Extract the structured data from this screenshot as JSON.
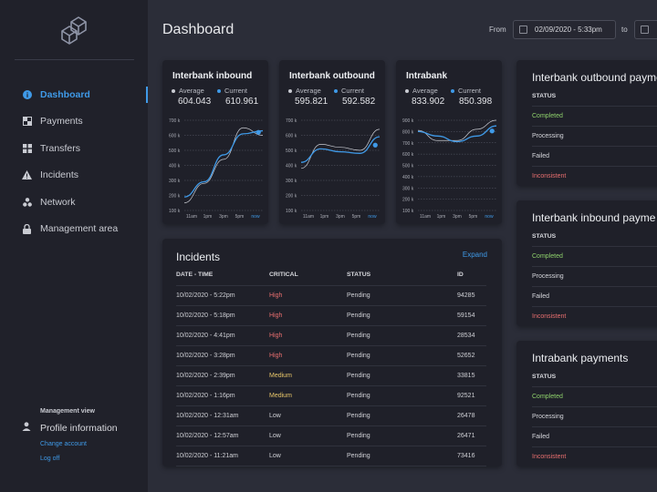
{
  "header": {
    "title": "Dashboard",
    "from_label": "From",
    "from_value": "02/09/2020 - 5:33pm",
    "to_label": "to"
  },
  "sidebar": {
    "items": [
      {
        "label": "Dashboard",
        "icon": "info-icon",
        "active": true
      },
      {
        "label": "Payments",
        "icon": "payments-icon"
      },
      {
        "label": "Transfers",
        "icon": "transfers-icon"
      },
      {
        "label": "Incidents",
        "icon": "warning-icon"
      },
      {
        "label": "Network",
        "icon": "network-icon"
      },
      {
        "label": "Management area",
        "icon": "lock-icon"
      }
    ],
    "management_label": "Management view",
    "profile_label": "Profile information",
    "change_account": "Change account",
    "log_off": "Log off"
  },
  "colors": {
    "accent": "#3f9ae8",
    "high": "#e86f6f",
    "medium": "#e8c66a",
    "completed": "#8ed16b"
  },
  "kpis": [
    {
      "title": "Interbank inbound",
      "average_label": "Average",
      "average": "604.043",
      "current_label": "Current",
      "current": "610.961"
    },
    {
      "title": "Interbank outbound",
      "average_label": "Average",
      "average": "595.821",
      "current_label": "Current",
      "current": "592.582"
    },
    {
      "title": "Intrabank",
      "average_label": "Average",
      "average": "833.902",
      "current_label": "Current",
      "current": "850.398"
    }
  ],
  "chart_data": [
    {
      "type": "line",
      "x": [
        "11am",
        "1pm",
        "3pm",
        "5pm",
        "now"
      ],
      "yticks": [
        "700 k",
        "600 k",
        "500 k",
        "400 k",
        "300 k",
        "200 k",
        "100 k"
      ],
      "ylim": [
        100,
        700
      ],
      "series": [
        {
          "values": [
            150,
            280,
            440,
            650,
            600
          ]
        },
        {
          "values": [
            190,
            290,
            470,
            610,
            630
          ]
        }
      ]
    },
    {
      "type": "line",
      "x": [
        "11am",
        "1pm",
        "3pm",
        "5pm",
        "now"
      ],
      "yticks": [
        "700 k",
        "600 k",
        "500 k",
        "400 k",
        "300 k",
        "200 k",
        "100 k"
      ],
      "ylim": [
        100,
        700
      ],
      "series": [
        {
          "values": [
            380,
            540,
            520,
            500,
            640
          ]
        },
        {
          "values": [
            420,
            510,
            490,
            480,
            590
          ]
        }
      ]
    },
    {
      "type": "line",
      "x": [
        "11am",
        "1pm",
        "3pm",
        "5pm",
        "now"
      ],
      "yticks": [
        "900 k",
        "800 k",
        "700 k",
        "600 k",
        "500 k",
        "400 k",
        "300 k",
        "200 k",
        "100 k"
      ],
      "ylim": [
        100,
        900
      ],
      "series": [
        {
          "values": [
            810,
            720,
            720,
            820,
            900
          ]
        },
        {
          "values": [
            800,
            760,
            710,
            760,
            850
          ]
        }
      ]
    }
  ],
  "incidents": {
    "title": "Incidents",
    "expand": "Expand",
    "columns": [
      "DATE - TIME",
      "CRITICAL",
      "STATUS",
      "ID"
    ],
    "rows": [
      {
        "date": "10/02/2020 - 5:22pm",
        "critical": "High",
        "status": "Pending",
        "id": "94285"
      },
      {
        "date": "10/02/2020 - 5:18pm",
        "critical": "High",
        "status": "Pending",
        "id": "59154"
      },
      {
        "date": "10/02/2020 - 4:41pm",
        "critical": "High",
        "status": "Pending",
        "id": "28534"
      },
      {
        "date": "10/02/2020 - 3:28pm",
        "critical": "High",
        "status": "Pending",
        "id": "52652"
      },
      {
        "date": "10/02/2020 - 2:39pm",
        "critical": "Medium",
        "status": "Pending",
        "id": "33815"
      },
      {
        "date": "10/02/2020 - 1:16pm",
        "critical": "Medium",
        "status": "Pending",
        "id": "92521"
      },
      {
        "date": "10/02/2020 - 12:31am",
        "critical": "Low",
        "status": "Pending",
        "id": "26478"
      },
      {
        "date": "10/02/2020 - 12:57am",
        "critical": "Low",
        "status": "Pending",
        "id": "26471"
      },
      {
        "date": "10/02/2020 - 11:21am",
        "critical": "Low",
        "status": "Pending",
        "id": "73416"
      }
    ]
  },
  "payments": [
    {
      "title": "Interbank outbound payme",
      "status_label": "STATUS",
      "rows": [
        "Completed",
        "Processing",
        "Failed",
        "Inconsistent"
      ]
    },
    {
      "title": "Interbank inbound payme",
      "status_label": "STATUS",
      "rows": [
        "Completed",
        "Processing",
        "Failed",
        "Inconsistent"
      ]
    },
    {
      "title": "Intrabank payments",
      "status_label": "STATUS",
      "rows": [
        "Completed",
        "Processing",
        "Failed",
        "Inconsistent"
      ]
    }
  ]
}
